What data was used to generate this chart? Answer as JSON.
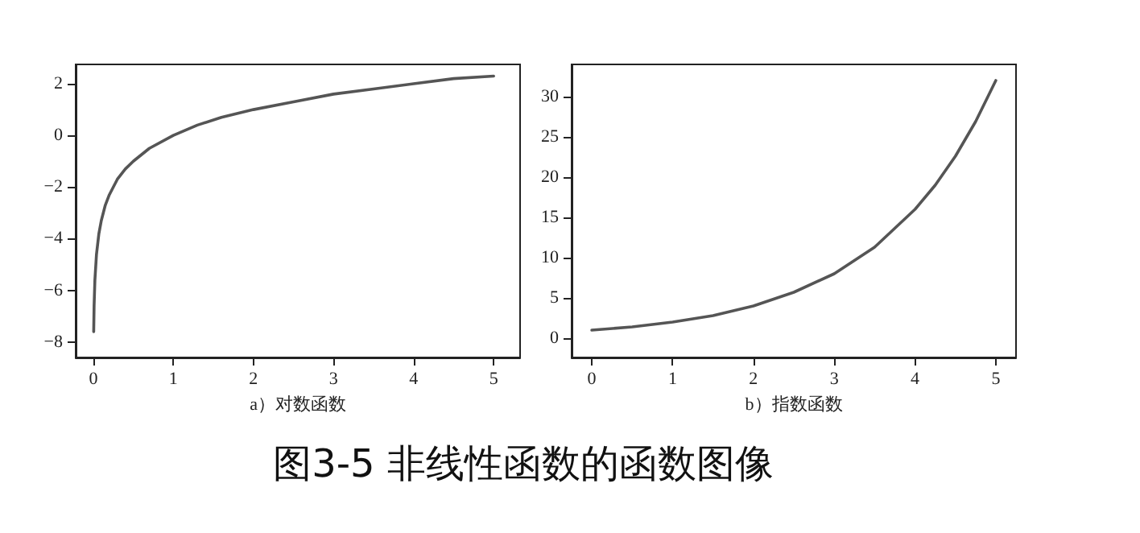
{
  "chart_data": [
    {
      "type": "line",
      "xlabel": "a）对数函数",
      "x": [
        0.005,
        0.01,
        0.02,
        0.04,
        0.07,
        0.1,
        0.15,
        0.2,
        0.3,
        0.4,
        0.5,
        0.7,
        1,
        1.3,
        1.6,
        2,
        2.5,
        3,
        3.5,
        4,
        4.5,
        5
      ],
      "series": [
        {
          "color": "#555555",
          "values": [
            -7.6,
            -6.6,
            -5.6,
            -4.6,
            -3.8,
            -3.3,
            -2.7,
            -2.3,
            -1.7,
            -1.3,
            -1,
            -0.5,
            0,
            0.4,
            0.7,
            1,
            1.3,
            1.6,
            1.8,
            2,
            2.2,
            2.3
          ]
        }
      ],
      "xlim": [
        -0.22,
        5.33
      ],
      "xticks": [
        0,
        1,
        2,
        3,
        4,
        5
      ],
      "ylim": [
        -8.6,
        2.75
      ],
      "yticks": [
        -8,
        -6,
        -4,
        -2,
        0,
        2
      ],
      "marker": "none",
      "line_style": "solid",
      "annotations": [
        "图3-5 非线性函数的函数图像"
      ]
    },
    {
      "type": "line",
      "xlabel": "b）指数函数",
      "x": [
        0,
        0.5,
        1,
        1.5,
        2,
        2.5,
        3,
        3.5,
        4,
        4.25,
        4.5,
        4.75,
        5
      ],
      "series": [
        {
          "color": "#555555",
          "values": [
            1,
            1.4,
            2,
            2.8,
            4,
            5.7,
            8,
            11.3,
            16,
            19,
            22.6,
            26.9,
            32
          ]
        }
      ],
      "xlim": [
        -0.25,
        5.25
      ],
      "xticks": [
        0,
        1,
        2,
        3,
        4,
        5
      ],
      "ylim": [
        -2.4,
        34
      ],
      "yticks": [
        0,
        5,
        10,
        15,
        20,
        25,
        30
      ],
      "marker": "none",
      "line_style": "solid"
    }
  ]
}
